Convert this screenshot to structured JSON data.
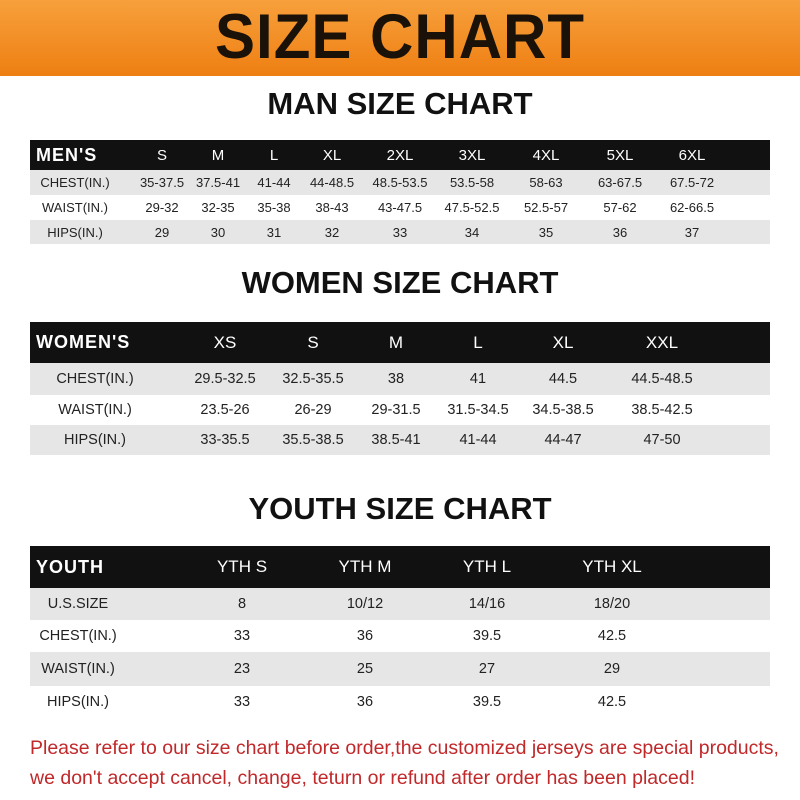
{
  "banner": {
    "title": "SIZE CHART",
    "color": "#ee7f12"
  },
  "men": {
    "title": "MAN SIZE CHART",
    "header": [
      "MEN'S",
      "S",
      "M",
      "L",
      "XL",
      "2XL",
      "3XL",
      "4XL",
      "5XL",
      "6XL"
    ],
    "rows": [
      [
        "CHEST(IN.)",
        "35-37.5",
        "37.5-41",
        "41-44",
        "44-48.5",
        "48.5-53.5",
        "53.5-58",
        "58-63",
        "63-67.5",
        "67.5-72"
      ],
      [
        "WAIST(IN.)",
        "29-32",
        "32-35",
        "35-38",
        "38-43",
        "43-47.5",
        "47.5-52.5",
        "52.5-57",
        "57-62",
        "62-66.5"
      ],
      [
        "HIPS(IN.)",
        "29",
        "30",
        "31",
        "32",
        "33",
        "34",
        "35",
        "36",
        "37"
      ]
    ]
  },
  "women": {
    "title": "WOMEN SIZE CHART",
    "header": [
      "WOMEN'S",
      "XS",
      "S",
      "M",
      "L",
      "XL",
      "XXL"
    ],
    "rows": [
      [
        "CHEST(IN.)",
        "29.5-32.5",
        "32.5-35.5",
        "38",
        "41",
        "44.5",
        "44.5-48.5"
      ],
      [
        "WAIST(IN.)",
        "23.5-26",
        "26-29",
        "29-31.5",
        "31.5-34.5",
        "34.5-38.5",
        "38.5-42.5"
      ],
      [
        "HIPS(IN.)",
        "33-35.5",
        "35.5-38.5",
        "38.5-41",
        "41-44",
        "44-47",
        "47-50"
      ]
    ]
  },
  "youth": {
    "title": "YOUTH SIZE CHART",
    "header": [
      "YOUTH",
      "YTH S",
      "YTH M",
      "YTH L",
      "YTH XL"
    ],
    "rows": [
      [
        "U.S.SIZE",
        "8",
        "10/12",
        "14/16",
        "18/20"
      ],
      [
        "CHEST(IN.)",
        "33",
        "36",
        "39.5",
        "42.5"
      ],
      [
        "WAIST(IN.)",
        "23",
        "25",
        "27",
        "29"
      ],
      [
        "HIPS(IN.)",
        "33",
        "36",
        "39.5",
        "42.5"
      ]
    ]
  },
  "note": {
    "line1": "Please refer to our size chart before order,the customized jerseys are special products,",
    "line2": "we don't accept cancel, change, teturn or refund after order has been placed!",
    "color": "#c0282a"
  }
}
